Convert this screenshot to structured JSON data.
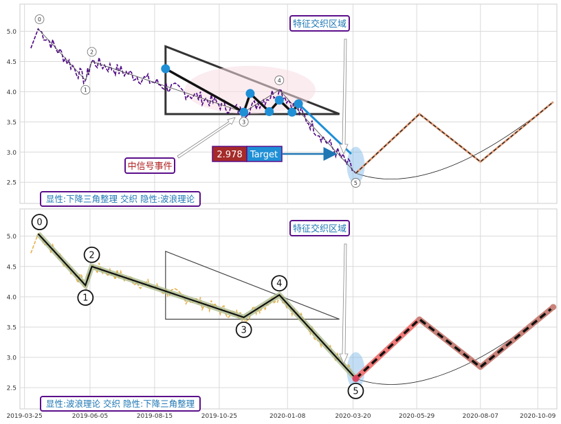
{
  "chart_data": [
    {
      "type": "line",
      "panel": "top",
      "ylim": [
        2.15,
        5.45
      ],
      "xlim": [
        "2019-03-20",
        "2020-10-30"
      ],
      "yticks": [
        "2.5",
        "3.0",
        "3.5",
        "4.0",
        "4.5",
        "5.0"
      ],
      "grid": true,
      "price_color": "#4b0082",
      "wave_points": [
        {
          "label": "0",
          "date": "2019-04-09",
          "value": 5.04
        },
        {
          "label": "1",
          "date": "2019-05-31",
          "value": 4.19
        },
        {
          "label": "2",
          "date": "2019-06-07",
          "value": 4.5
        },
        {
          "label": "3",
          "date": "2019-11-21",
          "value": 3.66
        },
        {
          "label": "4",
          "date": "2019-12-30",
          "value": 4.03
        },
        {
          "label": "5",
          "date": "2020-03-23",
          "value": 2.65
        }
      ],
      "triangle_points": [
        {
          "date": "2019-08-27",
          "value": 4.38
        },
        {
          "date": "2019-11-21",
          "value": 3.66
        },
        {
          "date": "2019-11-28",
          "value": 3.97
        },
        {
          "date": "2019-12-19",
          "value": 3.67
        },
        {
          "date": "2019-12-30",
          "value": 3.86
        },
        {
          "date": "2020-01-13",
          "value": 3.66
        },
        {
          "date": "2020-01-20",
          "value": 3.8
        }
      ],
      "projection": [
        {
          "date": "2020-03-23",
          "value": 2.65
        },
        {
          "date": "2020-06-01",
          "value": 3.63
        },
        {
          "date": "2020-08-07",
          "value": 2.84
        },
        {
          "date": "2020-10-26",
          "value": 3.83
        }
      ],
      "target_value": "2.978",
      "target_label": "Target",
      "labels": {
        "feature_zone": "特征交织区域",
        "mid_signal": "中信号事件",
        "summary": "显性:下降三角整理 交织 隐性:波浪理论"
      }
    },
    {
      "type": "line",
      "panel": "bottom",
      "ylim": [
        2.15,
        5.45
      ],
      "xlim": [
        "2019-03-20",
        "2020-10-30"
      ],
      "yticks": [
        "2.5",
        "3.0",
        "3.5",
        "4.0",
        "4.5",
        "5.0"
      ],
      "xticks": [
        "2019-03-25",
        "2019-06-05",
        "2019-08-15",
        "2019-10-25",
        "2020-01-08",
        "2020-03-20",
        "2020-05-29",
        "2020-08-07",
        "2020-10-09"
      ],
      "grid": true,
      "price_color": "#e8b04a",
      "wave_points": [
        {
          "label": "0",
          "date": "2019-04-09",
          "value": 5.04
        },
        {
          "label": "1",
          "date": "2019-05-31",
          "value": 4.19
        },
        {
          "label": "2",
          "date": "2019-06-07",
          "value": 4.5
        },
        {
          "label": "3",
          "date": "2019-11-21",
          "value": 3.66
        },
        {
          "label": "4",
          "date": "2019-12-30",
          "value": 4.03
        },
        {
          "label": "5",
          "date": "2020-03-23",
          "value": 2.65
        }
      ],
      "projection": [
        {
          "date": "2020-03-23",
          "value": 2.65
        },
        {
          "date": "2020-06-01",
          "value": 3.63
        },
        {
          "date": "2020-08-07",
          "value": 2.84
        },
        {
          "date": "2020-10-26",
          "value": 3.83
        }
      ],
      "labels": {
        "feature_zone": "特征交织区域",
        "summary": "显性:波浪理论 交织 隐性:下降三角整理"
      }
    }
  ]
}
